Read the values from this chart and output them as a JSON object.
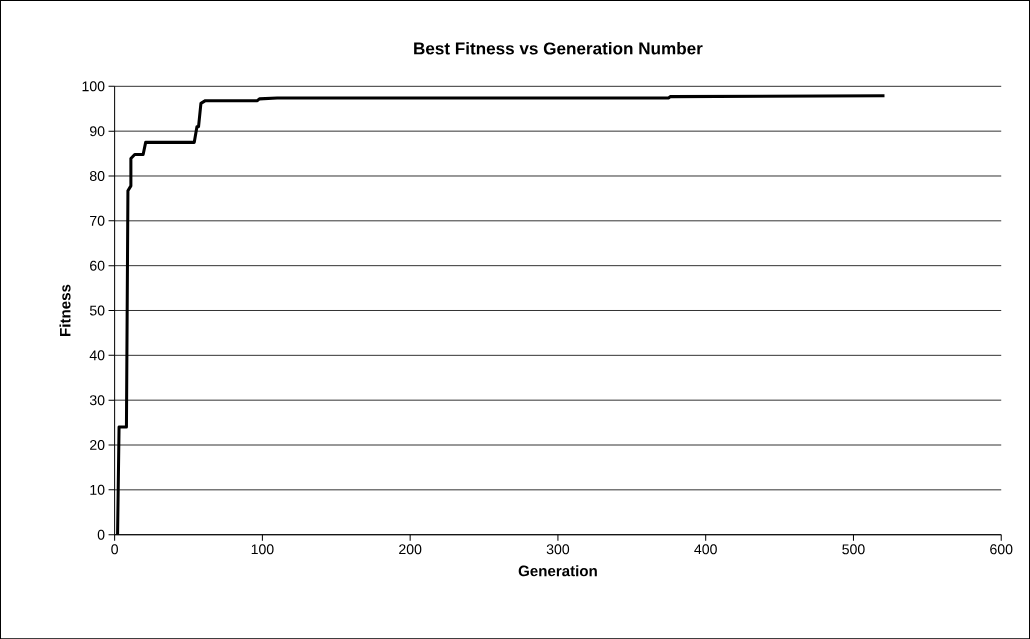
{
  "chart_data": {
    "type": "line",
    "title": "Best Fitness vs Generation Number",
    "xlabel": "Generation",
    "ylabel": "Fitness",
    "x": [
      2,
      3,
      8,
      9,
      11,
      11,
      13.6,
      19.3,
      21,
      53.9,
      55.7,
      56.8,
      58.4,
      61.4,
      96.6,
      98,
      110,
      375,
      376,
      521
    ],
    "values": [
      0,
      24,
      24,
      76.7,
      77.8,
      83.9,
      84.8,
      84.8,
      87.5,
      87.5,
      91,
      91,
      96.2,
      96.8,
      96.8,
      97.2,
      97.4,
      97.4,
      97.7,
      97.9
    ],
    "color": "#000000",
    "xlim": [
      0,
      600
    ],
    "ylim": [
      0,
      100
    ],
    "xticks": [
      0,
      100,
      200,
      300,
      400,
      500,
      600
    ],
    "yticks": [
      0,
      10,
      20,
      30,
      40,
      50,
      60,
      70,
      80,
      90,
      100
    ],
    "grid": "y"
  }
}
